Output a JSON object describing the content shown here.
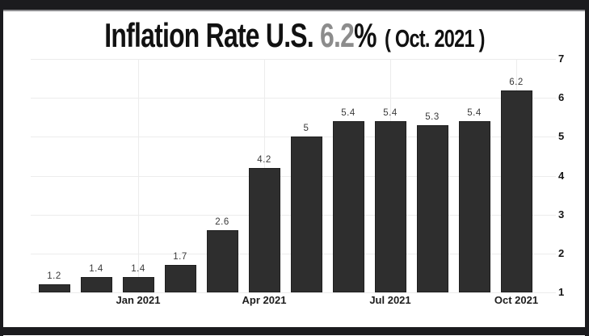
{
  "frame": {
    "background": "#ffffff",
    "border_color": "#1b1b1e"
  },
  "title": {
    "prefix": "Inflation Rate U.S. ",
    "highlight": "6.2",
    "percent_sign": "%",
    "suffix": "( Oct. 2021 )",
    "highlight_color": "#8c8c8c",
    "text_color": "#111111"
  },
  "chart_data": {
    "type": "bar",
    "title": "Inflation Rate U.S. 6.2% ( Oct. 2021 )",
    "values": [
      1.2,
      1.4,
      1.4,
      1.7,
      2.6,
      4.2,
      5,
      5.4,
      5.4,
      5.3,
      5.4,
      6.2
    ],
    "bar_labels": [
      "1.2",
      "1.4",
      "1.4",
      "1.7",
      "2.6",
      "4.2",
      "5",
      "5.4",
      "5.4",
      "5.3",
      "5.4",
      "6.2"
    ],
    "x_tick_labels": [
      {
        "index": 2,
        "label": "Jan 2021"
      },
      {
        "index": 5,
        "label": "Apr 2021"
      },
      {
        "index": 8,
        "label": "Jul 2021"
      },
      {
        "index": 11,
        "label": "Oct 2021"
      }
    ],
    "y_ticks": [
      1,
      2,
      3,
      4,
      5,
      6,
      7
    ],
    "ylim": [
      1,
      7
    ],
    "baseline": 1,
    "y_axis_side": "right",
    "grid": true,
    "bar_color": "#2e2e2e",
    "bar_border_color": "#1f1f1f",
    "grid_color": "#ececec"
  }
}
